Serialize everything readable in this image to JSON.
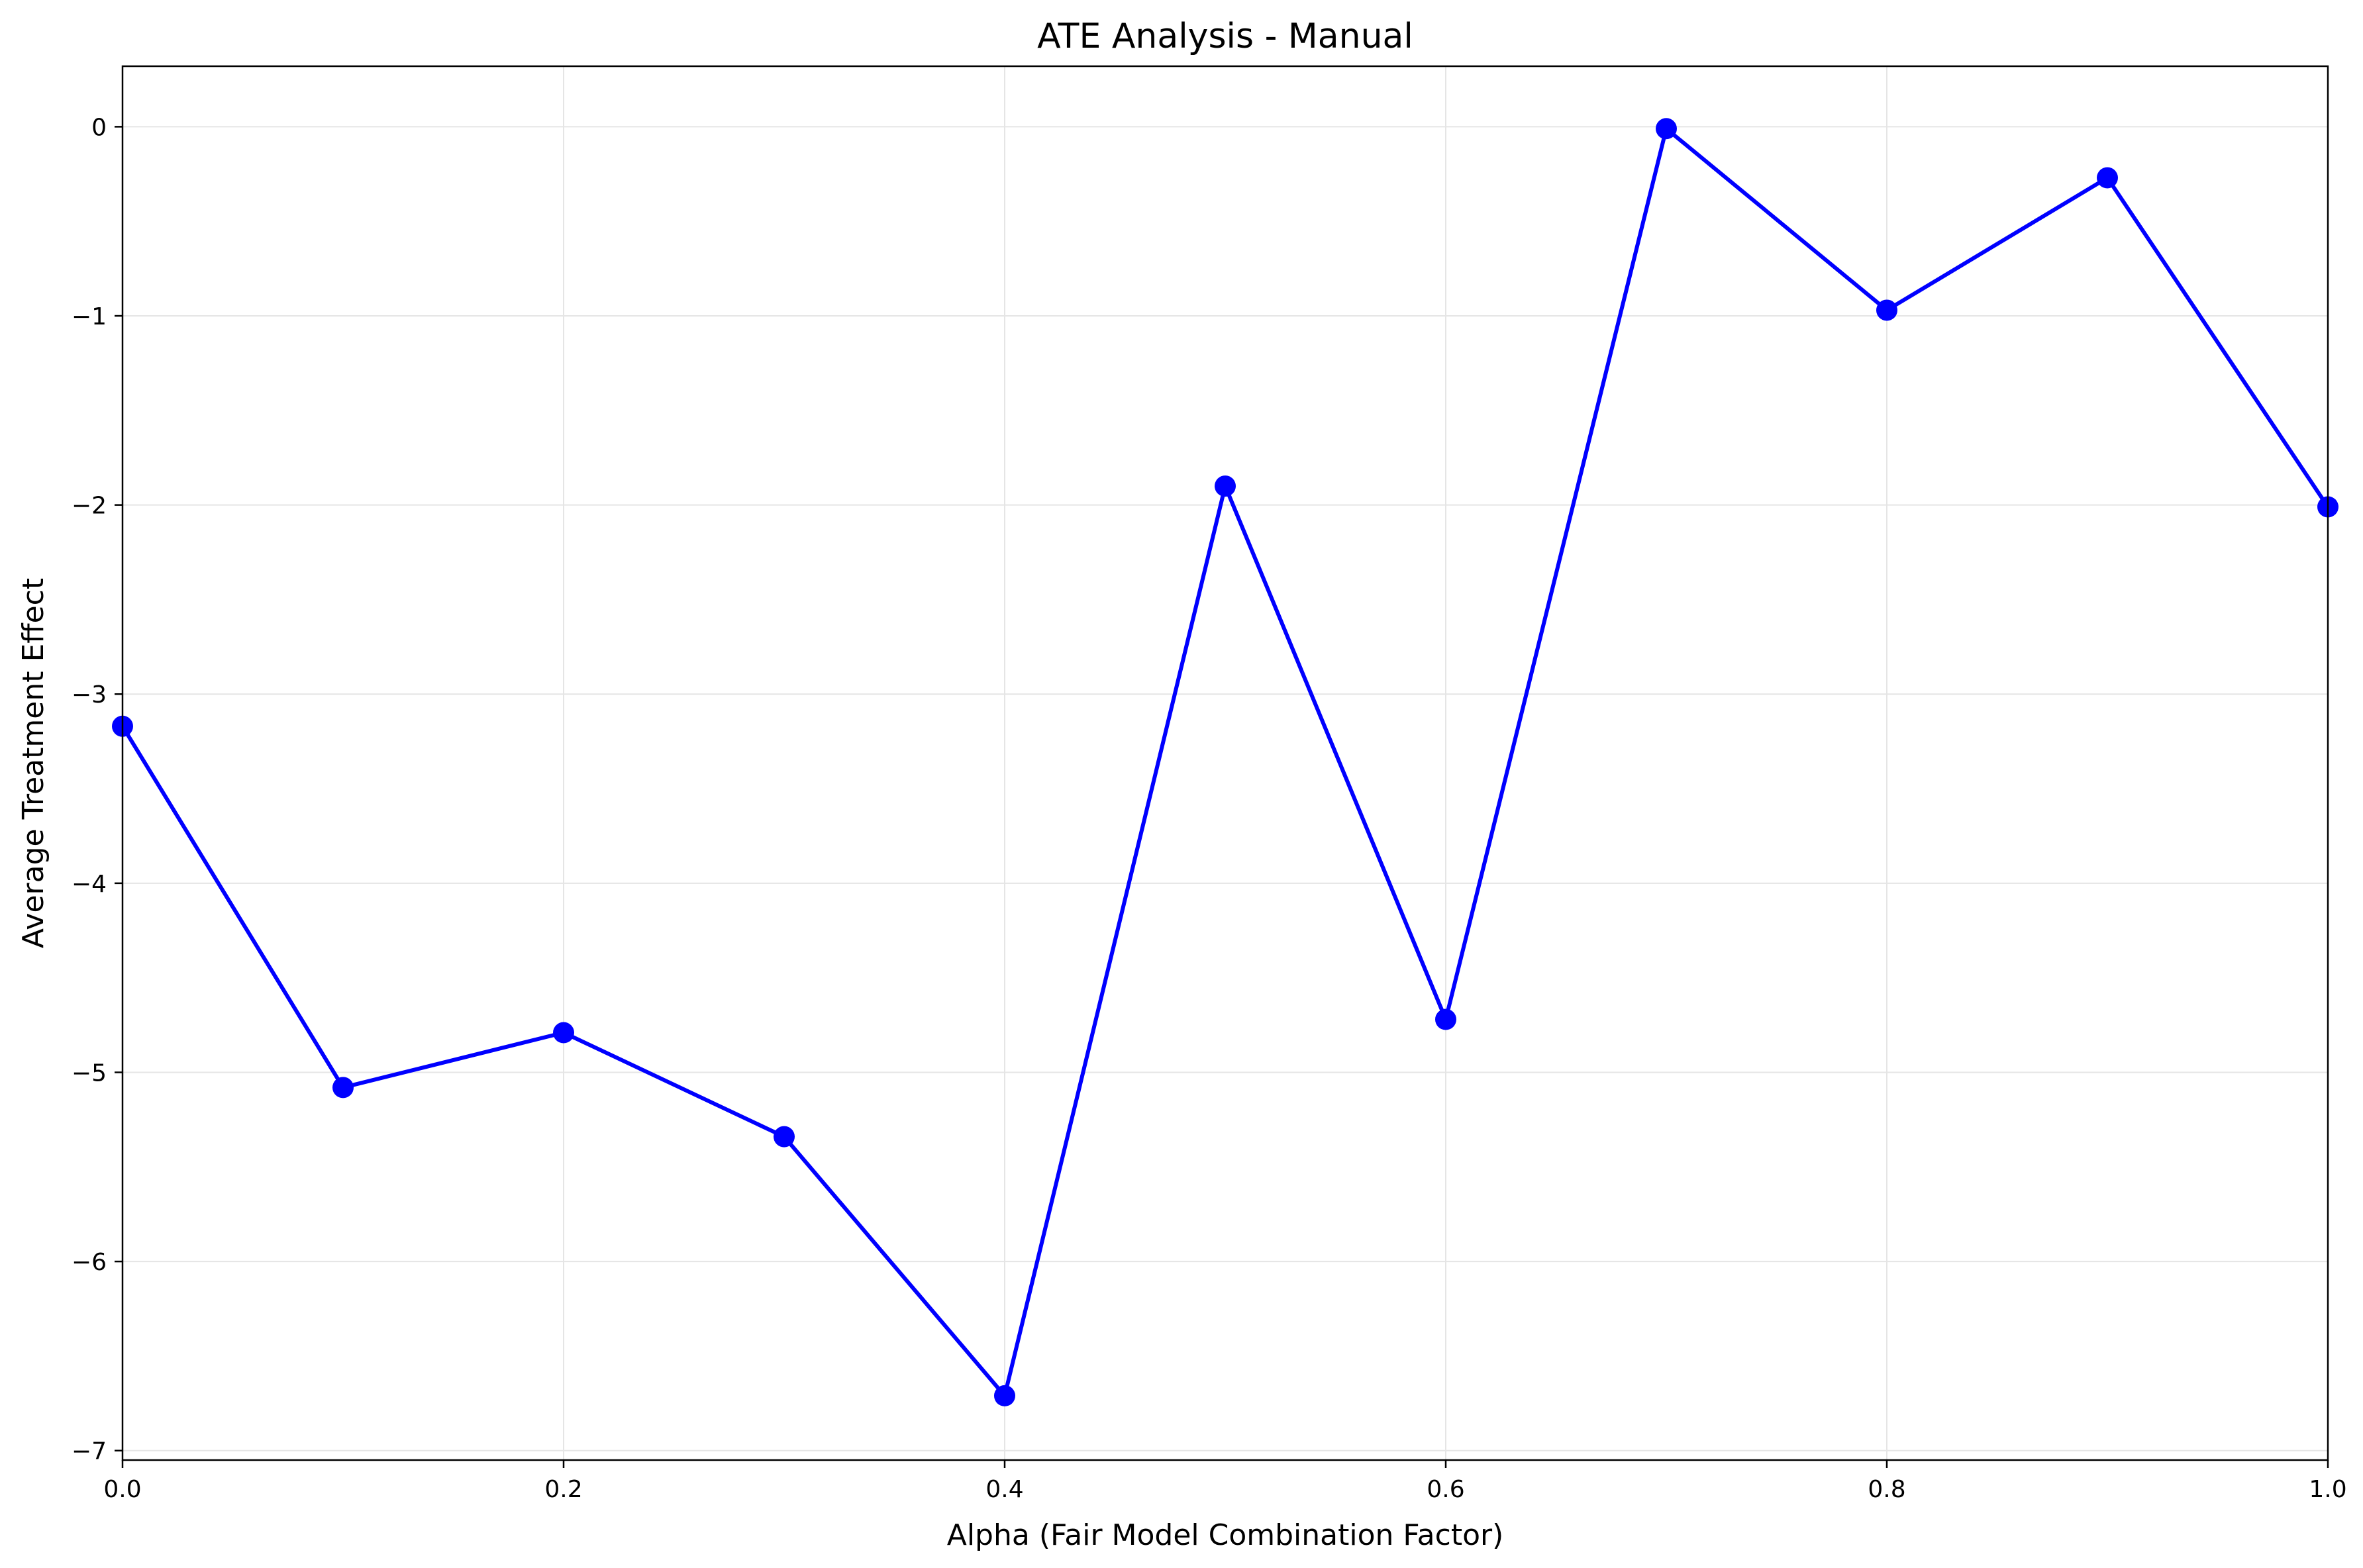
{
  "chart_data": {
    "type": "line",
    "title": "ATE Analysis - Manual",
    "xlabel": "Alpha (Fair Model Combination Factor)",
    "ylabel": "Average Treatment Effect",
    "xlim": [
      0.0,
      1.0
    ],
    "ylim": [
      -7.05,
      0.32
    ],
    "x_ticks": [
      0.0,
      0.2,
      0.4,
      0.6,
      0.8,
      1.0
    ],
    "x_tick_labels": [
      "0.0",
      "0.2",
      "0.4",
      "0.6",
      "0.8",
      "1.0"
    ],
    "y_ticks": [
      0,
      -1,
      -2,
      -3,
      -4,
      -5,
      -6,
      -7
    ],
    "y_tick_labels": [
      "0",
      "−1",
      "−2",
      "−3",
      "−4",
      "−5",
      "−6",
      "−7"
    ],
    "grid": true,
    "marker": "circle",
    "color": "#0000ff",
    "series": [
      {
        "x": [
          0.0,
          0.1,
          0.2,
          0.3,
          0.4,
          0.5,
          0.6,
          0.7,
          0.8,
          0.9,
          1.0
        ],
        "values": [
          -3.17,
          -5.08,
          -4.79,
          -5.34,
          -6.71,
          -1.9,
          -4.72,
          -0.01,
          -0.97,
          -0.27,
          -2.01
        ]
      }
    ]
  }
}
